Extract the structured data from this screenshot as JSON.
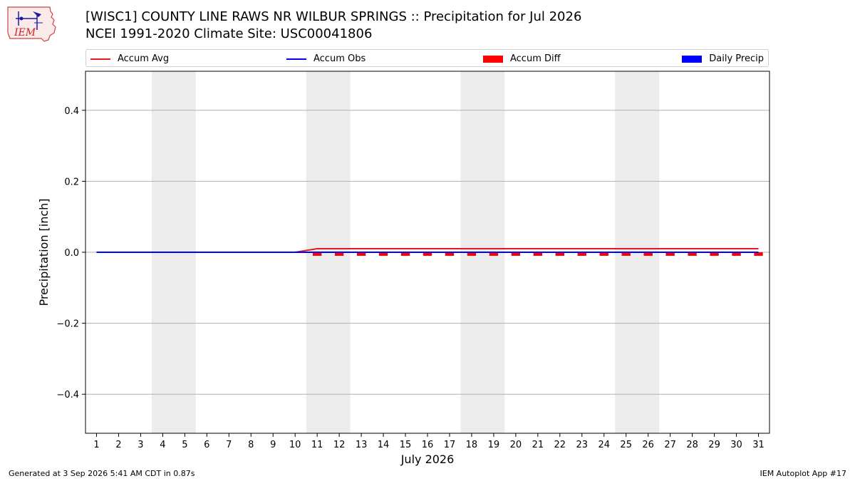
{
  "title_line1": "[WISC1] COUNTY LINE RAWS NR WILBUR SPRINGS :: Precipitation for Jul 2026",
  "title_line2": "NCEI 1991-2020 Climate Site: USC00041806",
  "logo_text": "IEM",
  "footer": {
    "generated": "Generated at 3 Sep 2026 5:41 AM CDT in 0.87s",
    "app": "IEM Autoplot App #17"
  },
  "colors": {
    "accum_avg": "#e31a1c",
    "accum_obs": "#0000ff",
    "accum_diff": "#ff0000",
    "daily_precip": "#0000ff",
    "weekend_shade": "#ececec",
    "grid": "#b0b0b0"
  },
  "chart_data": {
    "type": "line",
    "xlabel": "July 2026",
    "ylabel": "Precipitation [inch]",
    "x": [
      1,
      2,
      3,
      4,
      5,
      6,
      7,
      8,
      9,
      10,
      11,
      12,
      13,
      14,
      15,
      16,
      17,
      18,
      19,
      20,
      21,
      22,
      23,
      24,
      25,
      26,
      27,
      28,
      29,
      30,
      31
    ],
    "xlim": [
      0.5,
      31.5
    ],
    "ylim": [
      -0.51,
      0.51
    ],
    "yticks": [
      0.4,
      0.2,
      0.0,
      -0.2,
      -0.4
    ],
    "ytick_labels": [
      "0.4",
      "0.2",
      "0.0",
      "−0.2",
      "−0.4"
    ],
    "grid": "horizontal",
    "legend_position": "top",
    "weekend_days": [
      4,
      5,
      11,
      12,
      18,
      19,
      25,
      26
    ],
    "series": [
      {
        "name": "Accum Avg",
        "kind": "line",
        "values": [
          0,
          0,
          0,
          0,
          0,
          0,
          0,
          0,
          0,
          0,
          0.01,
          0.01,
          0.01,
          0.01,
          0.01,
          0.01,
          0.01,
          0.01,
          0.01,
          0.01,
          0.01,
          0.01,
          0.01,
          0.01,
          0.01,
          0.01,
          0.01,
          0.01,
          0.01,
          0.01,
          0.01
        ]
      },
      {
        "name": "Accum Obs",
        "kind": "line",
        "values": [
          0,
          0,
          0,
          0,
          0,
          0,
          0,
          0,
          0,
          0,
          0,
          0,
          0,
          0,
          0,
          0,
          0,
          0,
          0,
          0,
          0,
          0,
          0,
          0,
          0,
          0,
          0,
          0,
          0,
          0,
          0
        ]
      },
      {
        "name": "Accum Diff",
        "kind": "bar",
        "values": [
          0,
          0,
          0,
          0,
          0,
          0,
          0,
          0,
          0,
          0,
          -0.01,
          -0.01,
          -0.01,
          -0.01,
          -0.01,
          -0.01,
          -0.01,
          -0.01,
          -0.01,
          -0.01,
          -0.01,
          -0.01,
          -0.01,
          -0.01,
          -0.01,
          -0.01,
          -0.01,
          -0.01,
          -0.01,
          -0.01,
          -0.01
        ]
      },
      {
        "name": "Daily Precip",
        "kind": "bar",
        "values": [
          0,
          0,
          0,
          0,
          0,
          0,
          0,
          0,
          0,
          0,
          0,
          0,
          0,
          0,
          0,
          0,
          0,
          0,
          0,
          0,
          0,
          0,
          0,
          0,
          0,
          0,
          0,
          0,
          0,
          0,
          0
        ]
      }
    ]
  }
}
